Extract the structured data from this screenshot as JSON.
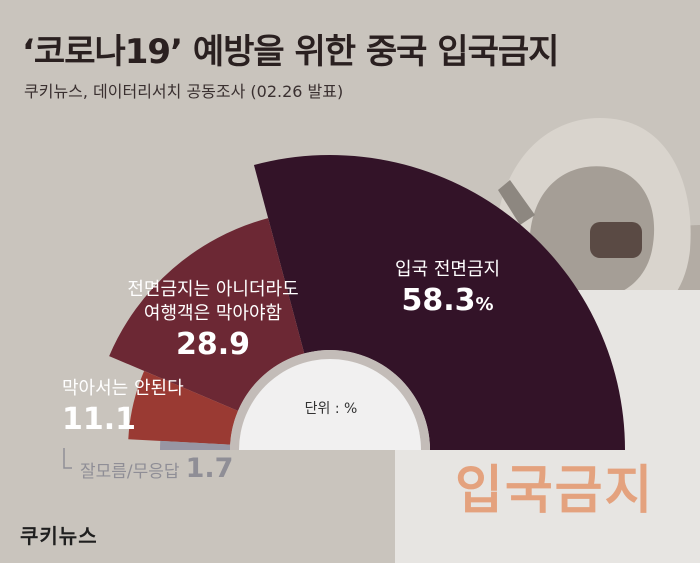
{
  "header": {
    "title": "‘코로나19’ 예방을 위한 중국 입국금지",
    "subtitle": "쿠키뉴스, 데이터리서치 공동조사 (02.26 발표)"
  },
  "chart_data": {
    "type": "pie",
    "style": "half-donut",
    "title": "‘코로나19’ 예방을 위한 중국 입국금지",
    "unit_note": "단위 : %",
    "slices": [
      {
        "label": "입국 전면금지",
        "value": 58.3,
        "value_text": "58.3",
        "unit": "%",
        "color": "#331328"
      },
      {
        "label": "전면금지는 아니더라도 여행객은 막아야함",
        "label_lines": [
          "전면금지는 아니더라도",
          "여행객은 막아야함"
        ],
        "value": 28.9,
        "value_text": "28.9",
        "color": "#6c2834"
      },
      {
        "label": "막아서는 안된다",
        "value": 11.1,
        "value_text": "11.1",
        "color": "#9a3a33"
      },
      {
        "label": "잘모름/무응답",
        "value": 1.7,
        "value_text": "1.7",
        "color": "#9796a4"
      }
    ]
  },
  "background": {
    "sign_text": "입국금지"
  },
  "footer": {
    "logo": "쿠키뉴스"
  }
}
